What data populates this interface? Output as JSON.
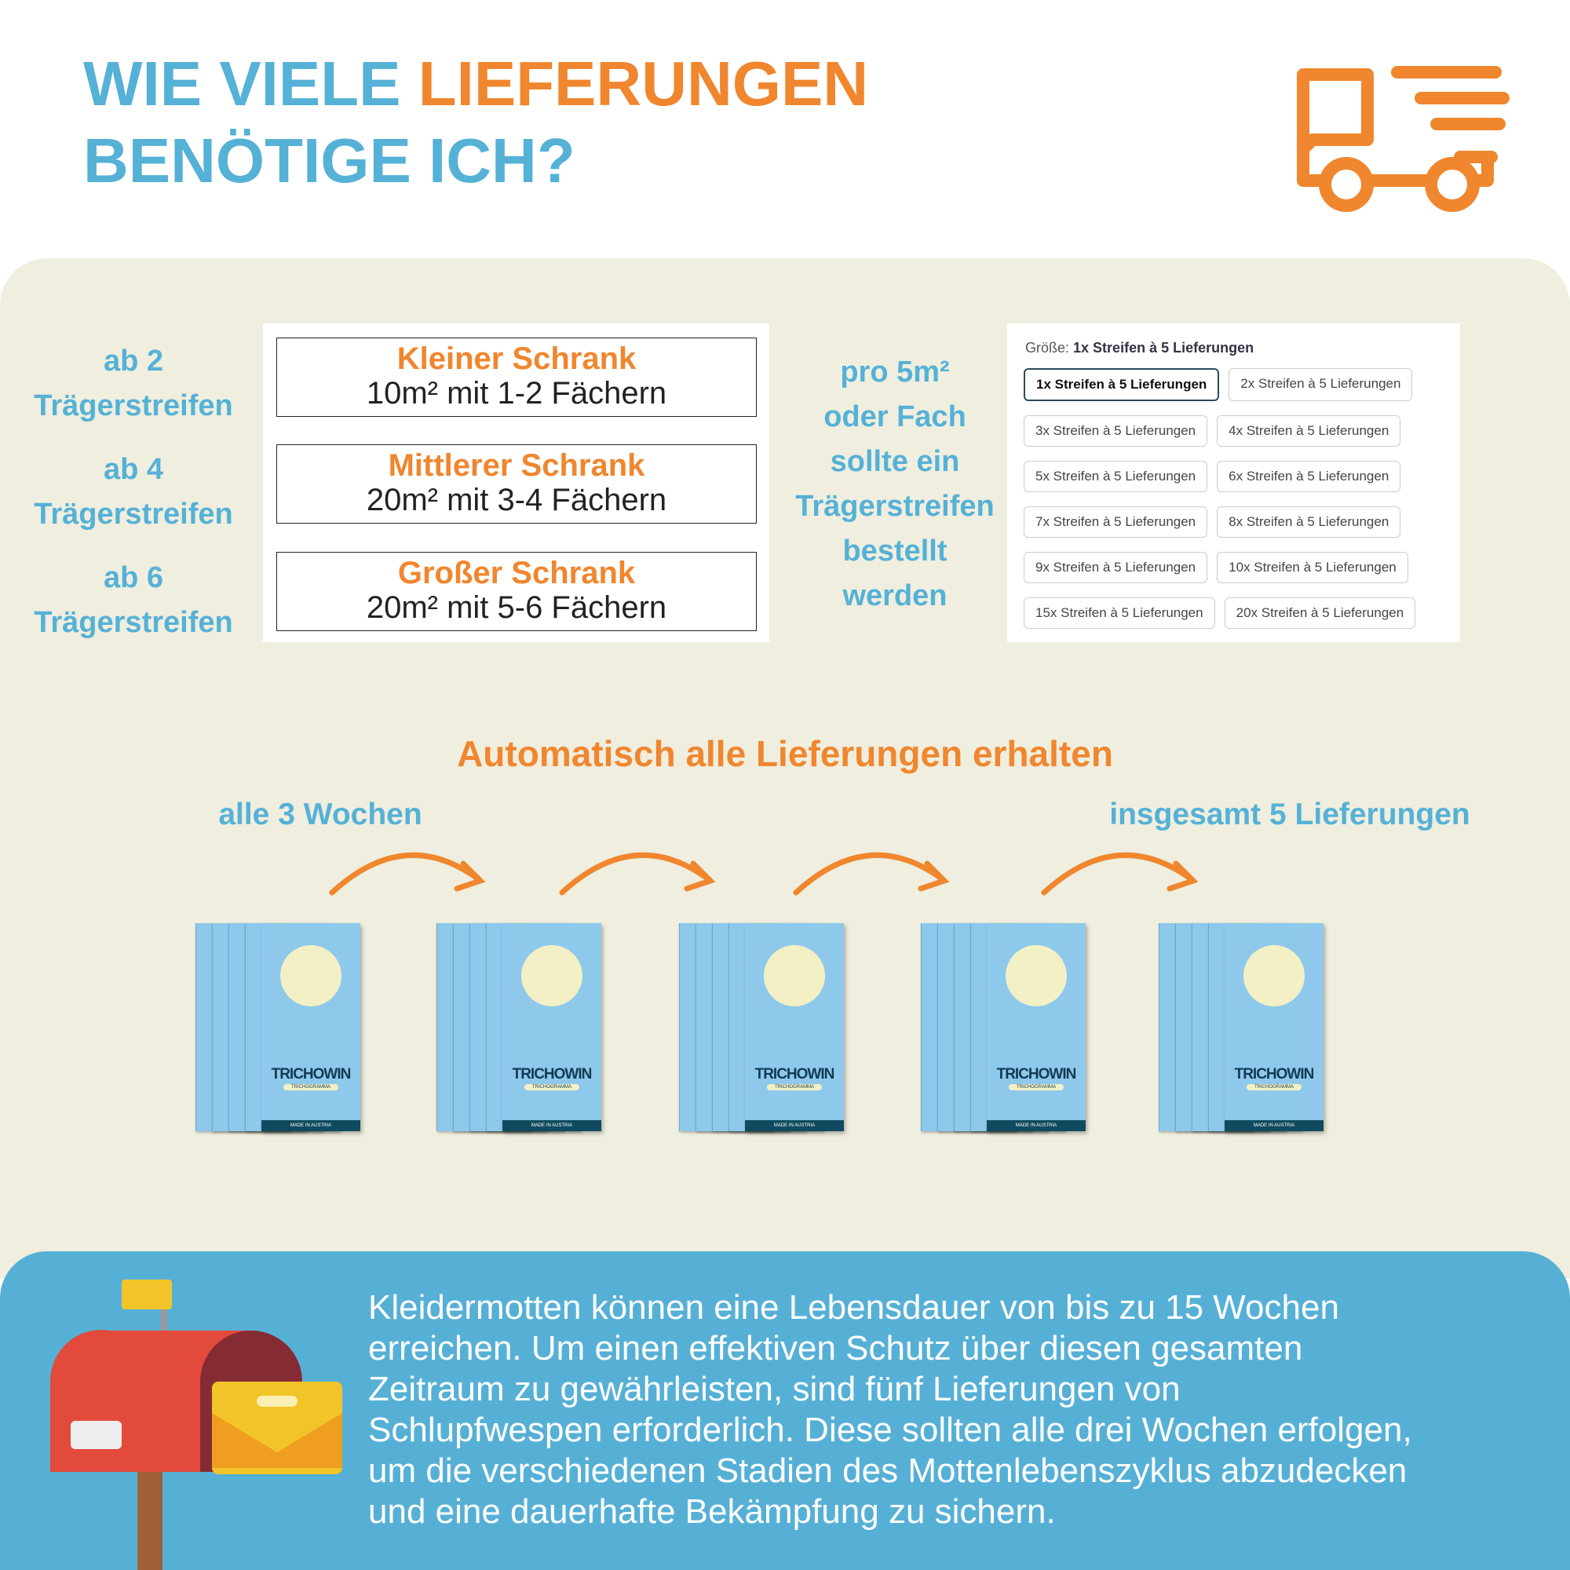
{
  "header": {
    "title_part1": "WIE VIELE",
    "title_highlight": "LIEFERUNGEN",
    "title_line2": "BENÖTIGE ICH?"
  },
  "sizes": [
    {
      "requirement_amount": "ab 2",
      "requirement_unit": "Trägerstreifen",
      "name": "Kleiner Schrank",
      "description": "10m² mit 1-2 Fächern"
    },
    {
      "requirement_amount": "ab 4",
      "requirement_unit": "Trägerstreifen",
      "name": "Mittlerer Schrank",
      "description": "20m² mit 3-4 Fächern"
    },
    {
      "requirement_amount": "ab 6",
      "requirement_unit": "Trägerstreifen",
      "name": "Großer Schrank",
      "description": "20m² mit 5-6 Fächern"
    }
  ],
  "recommendation": [
    "pro 5m²",
    "oder Fach",
    "sollte ein",
    "Trägerstreifen",
    "bestellt",
    "werden"
  ],
  "size_selector": {
    "label": "Größe:",
    "selected": "1x Streifen à 5 Lieferungen",
    "options": [
      "1x Streifen à 5 Lieferungen",
      "2x Streifen à 5 Lieferungen",
      "3x Streifen à 5 Lieferungen",
      "4x Streifen à 5 Lieferungen",
      "5x Streifen à 5 Lieferungen",
      "6x Streifen à 5 Lieferungen",
      "7x Streifen à 5 Lieferungen",
      "8x Streifen à 5 Lieferungen",
      "9x Streifen à 5 Lieferungen",
      "10x Streifen à 5 Lieferungen",
      "15x Streifen à 5 Lieferungen",
      "20x Streifen à 5 Lieferungen"
    ]
  },
  "delivery": {
    "title": "Automatisch alle Lieferungen erhalten",
    "interval": "alle 3 Wochen",
    "total": "insgesamt 5 Lieferungen",
    "packet": {
      "brand": "TRICHOWIN",
      "subtitle": "TRICHOGRAMMA",
      "origin": "MADE IN AUSTRIA"
    }
  },
  "info": {
    "lines": [
      "Kleidermotten können eine Lebensdauer von bis zu 15 Wochen",
      "erreichen. Um einen effektiven Schutz über diesen gesamten",
      "Zeitraum zu gewährleisten, sind fünf Lieferungen von",
      "Schlupfwespen erforderlich. Diese sollten alle drei Wochen erfolgen,",
      "um die verschiedenen Stadien des Mottenlebenszyklus abzudecken",
      "und eine dauerhafte Bekämpfung zu sichern."
    ]
  }
}
